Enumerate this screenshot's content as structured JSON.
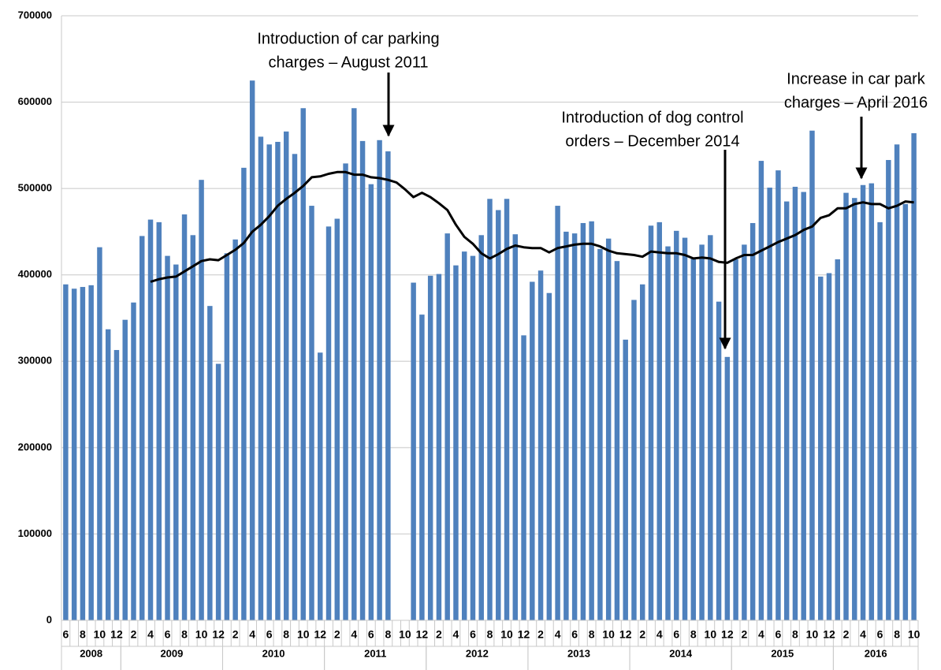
{
  "chart_data": {
    "type": "bar",
    "categories": [
      "6",
      null,
      "8",
      null,
      "10",
      null,
      "12",
      null,
      "2",
      null,
      "4",
      null,
      "6",
      null,
      "8",
      null,
      "10",
      null,
      "12",
      null,
      "2",
      null,
      "4",
      null,
      "6",
      null,
      "8",
      null,
      "10",
      null,
      "12",
      null,
      "2",
      null,
      "4",
      null,
      "6",
      null,
      "8",
      null,
      "10",
      null,
      "12",
      null,
      "2",
      null,
      "4",
      null,
      "6",
      null,
      "8",
      null,
      "10",
      null,
      "12",
      null,
      "2",
      null,
      "4",
      null,
      "6",
      null,
      "8",
      null,
      "10",
      null,
      "12",
      null,
      "2",
      null,
      "4",
      null,
      "6",
      null,
      "8",
      null,
      "10",
      null,
      "12",
      null,
      "2",
      null,
      "4",
      null,
      "6",
      null,
      "8",
      null,
      "10",
      null,
      "12",
      null,
      "2",
      null,
      "4",
      null,
      "6",
      null,
      "8",
      null,
      "10"
    ],
    "years": [
      "2008",
      "2009",
      "2010",
      "2011",
      "2012",
      "2013",
      "2014",
      "2015",
      "2016"
    ],
    "series": [
      {
        "kind": "bar",
        "color": "#4f81bd",
        "values": [
          389000,
          384000,
          386000,
          388000,
          432000,
          337000,
          313000,
          348000,
          368000,
          445000,
          464000,
          461000,
          422000,
          412000,
          470000,
          446000,
          510000,
          364000,
          297000,
          425000,
          441000,
          524000,
          625000,
          560000,
          551000,
          554000,
          566000,
          540000,
          593000,
          480000,
          310000,
          456000,
          465000,
          529000,
          593000,
          555000,
          505000,
          556000,
          543000,
          null,
          null,
          391000,
          354000,
          399000,
          401000,
          448000,
          411000,
          427000,
          422000,
          446000,
          488000,
          475000,
          488000,
          447000,
          330000,
          392000,
          405000,
          379000,
          480000,
          450000,
          448000,
          460000,
          462000,
          430000,
          442000,
          416000,
          325000,
          371000,
          389000,
          457000,
          461000,
          433000,
          451000,
          443000,
          420000,
          435000,
          446000,
          369000,
          305000,
          418000,
          435000,
          460000,
          532000,
          501000,
          521000,
          485000,
          502000,
          496000,
          567000,
          398000,
          402000,
          418000,
          495000,
          489000,
          504000,
          506000,
          461000,
          533000,
          551000,
          482000,
          564000
        ]
      },
      {
        "kind": "line",
        "color": "#000000",
        "values": [
          null,
          null,
          null,
          null,
          null,
          null,
          null,
          null,
          null,
          null,
          392000,
          395000,
          397000,
          398000,
          404000,
          410000,
          416000,
          418000,
          417000,
          423000,
          429000,
          437000,
          450000,
          458000,
          468000,
          480000,
          488000,
          495000,
          503000,
          513000,
          514000,
          517000,
          519000,
          519000,
          516000,
          516000,
          513000,
          512000,
          510000,
          507000,
          499000,
          490000,
          495000,
          490000,
          483000,
          475000,
          458000,
          444000,
          436000,
          425000,
          419000,
          424000,
          430000,
          434000,
          432000,
          431000,
          431000,
          426000,
          431000,
          433000,
          435000,
          436000,
          436000,
          433000,
          428000,
          425000,
          424000,
          423000,
          421000,
          427000,
          426000,
          425000,
          425000,
          423000,
          419000,
          420000,
          419000,
          415000,
          414000,
          419000,
          423000,
          423000,
          428000,
          433000,
          438000,
          442000,
          446000,
          452000,
          456000,
          466000,
          469000,
          477000,
          477000,
          482000,
          484000,
          482000,
          482000,
          477000,
          480000,
          485000,
          484000
        ]
      }
    ],
    "ylim": [
      0,
      700000
    ],
    "yticks": [
      0,
      100000,
      200000,
      300000,
      400000,
      500000,
      600000,
      700000
    ],
    "grid": true,
    "annotations": [
      {
        "lines": [
          "Introduction of car parking",
          "charges – August 2011"
        ]
      },
      {
        "lines": [
          "Introduction of dog control",
          "orders – December 2014"
        ]
      },
      {
        "lines": [
          "Increase in car park",
          "charges – April 2016"
        ]
      }
    ]
  }
}
